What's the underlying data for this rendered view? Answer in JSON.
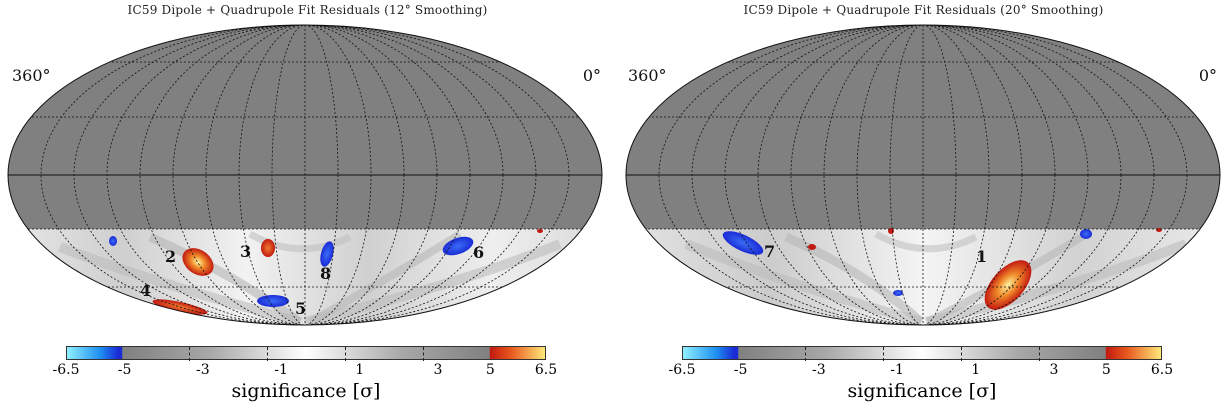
{
  "panels": [
    {
      "title": "IC59 Dipole + Quadrupole Fit Residuals (12° Smoothing)",
      "ra_left": "360°",
      "ra_right": "0°",
      "labels": [
        "2",
        "3",
        "8",
        "6",
        "4",
        "5"
      ],
      "hotspots": [
        {
          "color": "warm",
          "intensity": "high"
        },
        {
          "color": "warm",
          "intensity": "medium"
        },
        {
          "color": "warm",
          "intensity": "medium"
        },
        {
          "color": "cold",
          "intensity": "medium"
        },
        {
          "color": "cold",
          "intensity": "medium"
        },
        {
          "color": "cold",
          "intensity": "medium"
        },
        {
          "color": "cold",
          "intensity": "low"
        }
      ]
    },
    {
      "title": "IC59 Dipole + Quadrupole Fit Residuals (20° Smoothing)",
      "ra_left": "360°",
      "ra_right": "0°",
      "labels": [
        "7",
        "1"
      ],
      "hotspots": [
        {
          "color": "cold",
          "intensity": "medium"
        },
        {
          "color": "warm",
          "intensity": "high"
        },
        {
          "color": "warm",
          "intensity": "low"
        },
        {
          "color": "cold",
          "intensity": "low"
        },
        {
          "color": "cold",
          "intensity": "low"
        }
      ]
    }
  ],
  "colorbar": {
    "ticks": [
      "-6.5",
      "-5",
      "-3",
      "-1",
      "1",
      "3",
      "5",
      "6.5"
    ],
    "title": "significance [σ]",
    "colors": {
      "cold_min": "#8ff0ff",
      "cold": "#1a2bd6",
      "neutral": "#808080",
      "zero": "#ffffff",
      "warm": "#c21a10",
      "warm_max": "#ffe97a",
      "masked": "#808080"
    }
  }
}
